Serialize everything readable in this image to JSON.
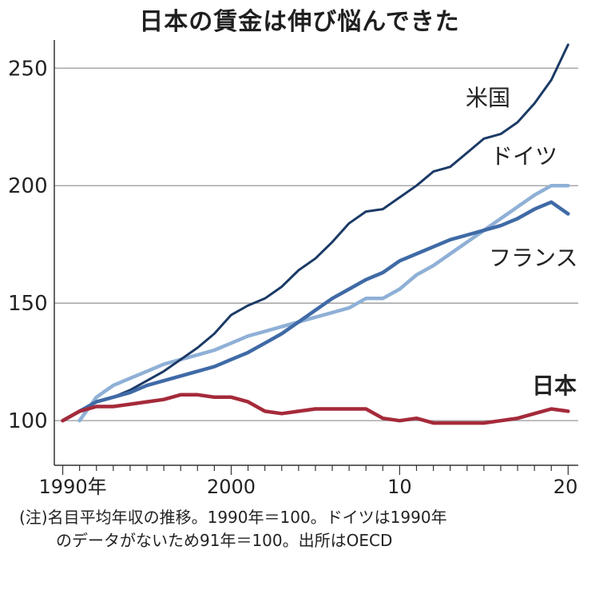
{
  "title": "日本の賃金は伸び悩んできた",
  "note_line1": "(注)名目平均年収の推移。1990年＝100。ドイツは1990年",
  "note_line2": "のデータがないため91年＝100。出所はOECD",
  "colors": {
    "usa": "#1b3a66",
    "germany": "#8fb0d6",
    "france": "#3f6aa6",
    "japan": "#a52a3a",
    "axis": "#333333",
    "grid": "#999999"
  },
  "chart_data": {
    "type": "line",
    "title": "日本の賃金は伸び悩んできた",
    "xlabel": "",
    "ylabel": "",
    "xlim": [
      1989.5,
      2020.6
    ],
    "ylim": [
      81,
      262
    ],
    "grid": "horizontal",
    "y_ticks": [
      100,
      150,
      200,
      250
    ],
    "y_tick_labels": [
      "100",
      "150",
      "200",
      "250"
    ],
    "x_ticks": [
      1990,
      2000,
      2010,
      2020
    ],
    "x_tick_labels": [
      "1990年",
      "2000",
      "10",
      "20"
    ],
    "series": [
      {
        "name": "米国",
        "color_key": "usa",
        "label": "米国",
        "x": [
          1990,
          1991,
          1992,
          1993,
          1994,
          1995,
          1996,
          1997,
          1998,
          1999,
          2000,
          2001,
          2002,
          2003,
          2004,
          2005,
          2006,
          2007,
          2008,
          2009,
          2010,
          2011,
          2012,
          2013,
          2014,
          2015,
          2016,
          2017,
          2018,
          2019,
          2020
        ],
        "y": [
          100,
          104,
          108,
          110,
          113,
          117,
          121,
          126,
          131,
          137,
          145,
          149,
          152,
          157,
          164,
          169,
          176,
          184,
          189,
          190,
          195,
          200,
          206,
          208,
          214,
          220,
          222,
          227,
          235,
          245,
          260
        ]
      },
      {
        "name": "ドイツ",
        "color_key": "germany",
        "label": "ドイツ",
        "x": [
          1991,
          1992,
          1993,
          1994,
          1995,
          1996,
          1997,
          1998,
          1999,
          2000,
          2001,
          2002,
          2003,
          2004,
          2005,
          2006,
          2007,
          2008,
          2009,
          2010,
          2011,
          2012,
          2013,
          2014,
          2015,
          2016,
          2017,
          2018,
          2019,
          2020
        ],
        "y": [
          100,
          110,
          115,
          118,
          121,
          124,
          126,
          128,
          130,
          133,
          136,
          138,
          140,
          142,
          144,
          146,
          148,
          152,
          152,
          156,
          162,
          166,
          171,
          176,
          181,
          186,
          191,
          196,
          200,
          200
        ]
      },
      {
        "name": "フランス",
        "color_key": "france",
        "label": "フランス",
        "x": [
          1990,
          1991,
          1992,
          1993,
          1994,
          1995,
          1996,
          1997,
          1998,
          1999,
          2000,
          2001,
          2002,
          2003,
          2004,
          2005,
          2006,
          2007,
          2008,
          2009,
          2010,
          2011,
          2012,
          2013,
          2014,
          2015,
          2016,
          2017,
          2018,
          2019,
          2020
        ],
        "y": [
          100,
          104,
          108,
          110,
          112,
          115,
          117,
          119,
          121,
          123,
          126,
          129,
          133,
          137,
          142,
          147,
          152,
          156,
          160,
          163,
          168,
          171,
          174,
          177,
          179,
          181,
          183,
          186,
          190,
          193,
          188
        ]
      },
      {
        "name": "日本",
        "color_key": "japan",
        "label": "日本",
        "x": [
          1990,
          1991,
          1992,
          1993,
          1994,
          1995,
          1996,
          1997,
          1998,
          1999,
          2000,
          2001,
          2002,
          2003,
          2004,
          2005,
          2006,
          2007,
          2008,
          2009,
          2010,
          2011,
          2012,
          2013,
          2014,
          2015,
          2016,
          2017,
          2018,
          2019,
          2020
        ],
        "y": [
          100,
          104,
          106,
          106,
          107,
          108,
          109,
          111,
          111,
          110,
          110,
          108,
          104,
          103,
          104,
          105,
          105,
          105,
          105,
          101,
          100,
          101,
          99,
          99,
          99,
          99,
          100,
          101,
          103,
          105,
          104
        ]
      }
    ]
  }
}
